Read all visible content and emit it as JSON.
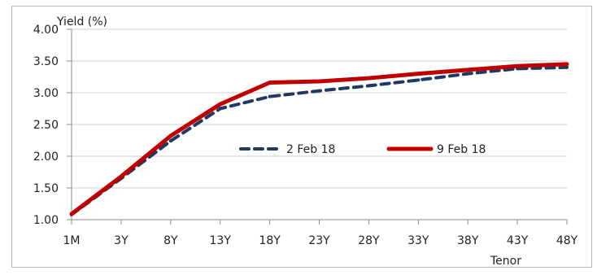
{
  "chart_data": {
    "type": "line",
    "title": "",
    "xlabel": "Tenor",
    "ylabel": "Yield (%)",
    "ylim": [
      1.0,
      4.0
    ],
    "yticks": [
      "1.00",
      "1.50",
      "2.00",
      "2.50",
      "3.00",
      "3.50",
      "4.00"
    ],
    "xticks": [
      "1M",
      "3Y",
      "8Y",
      "13Y",
      "18Y",
      "23Y",
      "28Y",
      "33Y",
      "38Y",
      "43Y",
      "48Y"
    ],
    "grid": "horizontal",
    "legend_position": "center",
    "series": [
      {
        "name": "2 Feb 18",
        "style": "dashed",
        "color": "#1f3864",
        "points": [
          [
            "1M",
            1.08
          ],
          [
            "3Y",
            1.65
          ],
          [
            "8Y",
            2.24
          ],
          [
            "13Y",
            2.75
          ],
          [
            "18Y",
            2.94
          ],
          [
            "23Y",
            3.03
          ],
          [
            "28Y",
            3.11
          ],
          [
            "33Y",
            3.2
          ],
          [
            "38Y",
            3.3
          ],
          [
            "43Y",
            3.38
          ],
          [
            "48Y",
            3.4
          ]
        ]
      },
      {
        "name": "9 Feb 18",
        "style": "solid",
        "color": "#c00000",
        "points": [
          [
            "1M",
            1.09
          ],
          [
            "3Y",
            1.68
          ],
          [
            "8Y",
            2.32
          ],
          [
            "13Y",
            2.82
          ],
          [
            "18Y",
            3.16
          ],
          [
            "23Y",
            3.18
          ],
          [
            "28Y",
            3.23
          ],
          [
            "33Y",
            3.3
          ],
          [
            "38Y",
            3.36
          ],
          [
            "43Y",
            3.42
          ],
          [
            "48Y",
            3.45
          ]
        ]
      }
    ]
  }
}
